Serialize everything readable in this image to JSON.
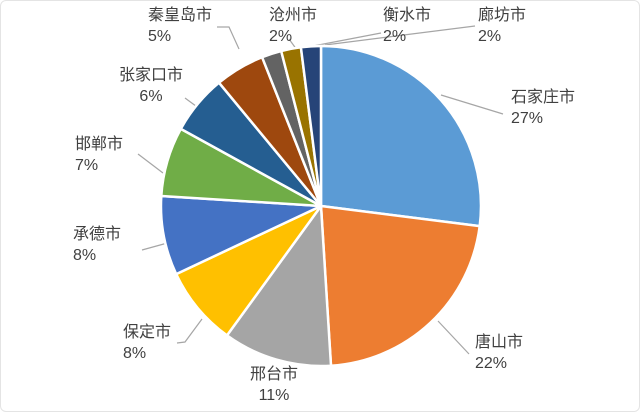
{
  "chart_data": {
    "type": "pie",
    "title": "",
    "unit": "%",
    "legend": "none",
    "labels_style": "outside-with-leader-lines",
    "start_angle_deg": 0,
    "direction": "clockwise",
    "slice_border_color": "#FFFFFF",
    "leader_line_color": "#A6A6A6",
    "label_text_color": "#404040",
    "background_color": "#FFFFFF",
    "slices": [
      {
        "name": "shijiazhuang",
        "label": "石家庄市",
        "value": 27,
        "display": "27%",
        "color": "#5B9BD5"
      },
      {
        "name": "tangshan",
        "label": "唐山市",
        "value": 22,
        "display": "22%",
        "color": "#ED7D31"
      },
      {
        "name": "xingtai",
        "label": "邢台市",
        "value": 11,
        "display": "11%",
        "color": "#A5A5A5"
      },
      {
        "name": "baoding",
        "label": "保定市",
        "value": 8,
        "display": "8%",
        "color": "#FFC000"
      },
      {
        "name": "chengde",
        "label": "承德市",
        "value": 8,
        "display": "8%",
        "color": "#4472C4"
      },
      {
        "name": "handan",
        "label": "邯郸市",
        "value": 7,
        "display": "7%",
        "color": "#70AD47"
      },
      {
        "name": "zhangjiakou",
        "label": "张家口市",
        "value": 6,
        "display": "6%",
        "color": "#255E91"
      },
      {
        "name": "qinhuangdao",
        "label": "秦皇岛市",
        "value": 5,
        "display": "5%",
        "color": "#9E480E"
      },
      {
        "name": "cangzhou",
        "label": "沧州市",
        "value": 2,
        "display": "2%",
        "color": "#636363"
      },
      {
        "name": "hengshui",
        "label": "衡水市",
        "value": 2,
        "display": "2%",
        "color": "#997300"
      },
      {
        "name": "langfang",
        "label": "廊坊市",
        "value": 2,
        "display": "2%",
        "color": "#264478"
      }
    ]
  }
}
